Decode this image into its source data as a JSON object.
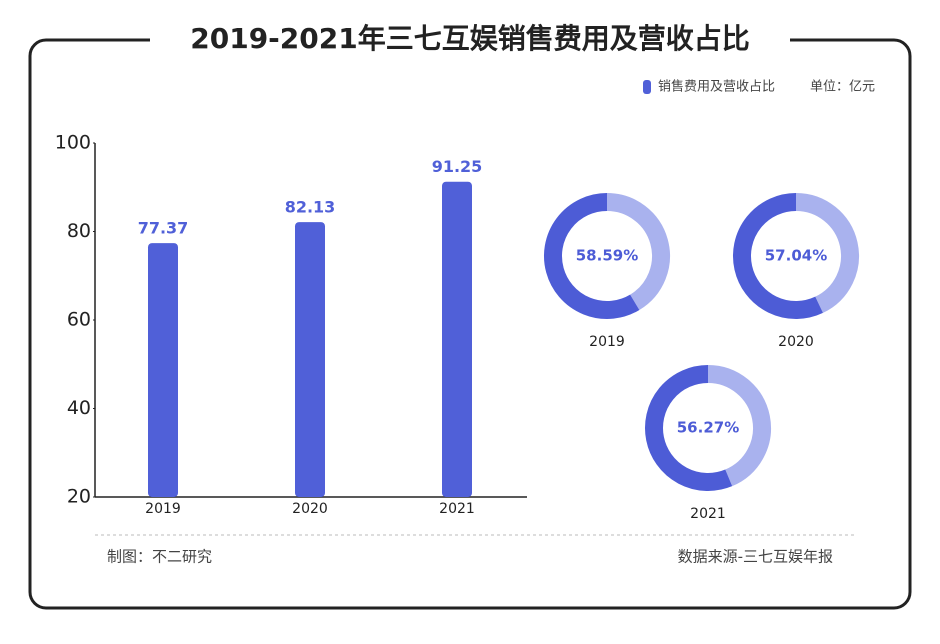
{
  "title": "2019-2021年三七互娱销售费用及营收占比",
  "credit": "制图：不二研究",
  "source": "数据来源-三七互娱年报",
  "unit": "单位：亿元",
  "chart_data": [
    {
      "type": "bar",
      "categories": [
        "2019",
        "2020",
        "2021"
      ],
      "series": [
        {
          "name": "销售费用及营收占比",
          "color": "#5060d8",
          "values": [
            77.37,
            82.13,
            91.25
          ]
        }
      ],
      "ylim": [
        20,
        100
      ],
      "yticks": [
        20,
        40,
        60,
        80,
        100
      ],
      "grid": false
    },
    {
      "type": "donut",
      "categories": [
        "2019",
        "2020",
        "2021"
      ],
      "values": [
        58.59,
        57.04,
        56.27
      ],
      "value_labels": [
        "58.59%",
        "57.04%",
        "56.27%"
      ],
      "color": "#4d5cd6",
      "rest_color": "#a9b2ee"
    }
  ]
}
